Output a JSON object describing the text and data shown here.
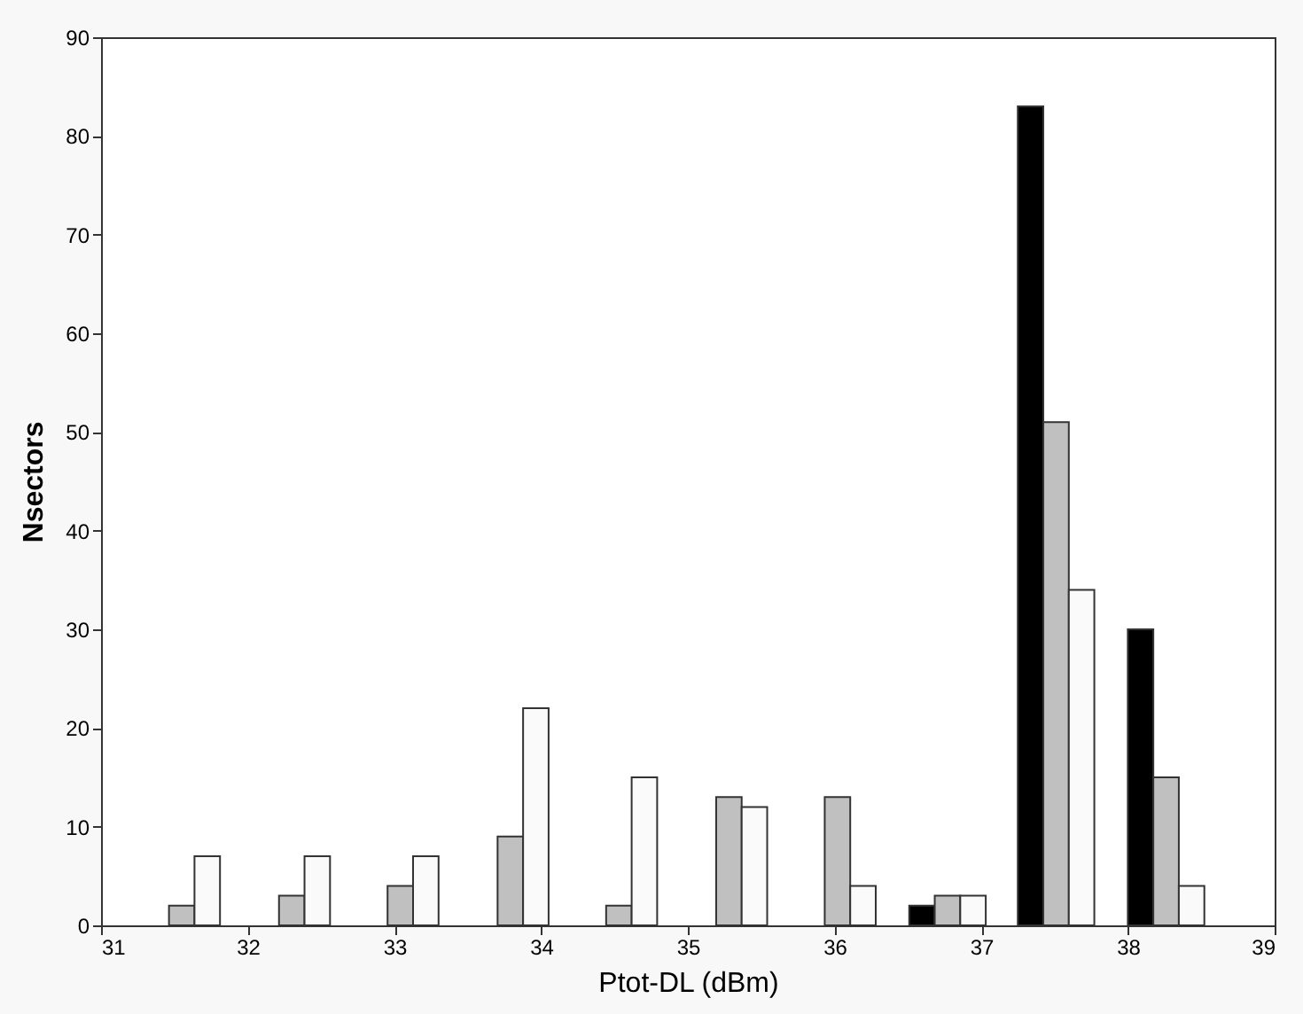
{
  "chart_data": {
    "type": "bar",
    "xlabel": "Ptot-DL (dBm)",
    "ylabel": "Nsectors",
    "x": [
      31.55,
      32.3,
      33.04,
      33.79,
      34.53,
      35.28,
      36.02,
      36.77,
      37.51,
      38.26
    ],
    "series": [
      {
        "color": "#000000",
        "values": [
          0,
          0,
          0,
          0,
          0,
          0,
          0,
          2,
          83,
          30
        ]
      },
      {
        "color": "#c0c0c0",
        "values": [
          2,
          3,
          4,
          9,
          2,
          13,
          13,
          3,
          51,
          15
        ]
      },
      {
        "color": "#fafafa",
        "values": [
          7,
          7,
          7,
          22,
          15,
          12,
          4,
          3,
          34,
          4
        ]
      }
    ],
    "xlim": [
      31,
      39
    ],
    "xticks": [
      31,
      32,
      33,
      34,
      35,
      36,
      37,
      38,
      39
    ],
    "ylim": [
      0,
      90
    ],
    "yticks": [
      0,
      10,
      20,
      30,
      40,
      50,
      60,
      70,
      80,
      90
    ],
    "grid": false,
    "legend": false
  }
}
